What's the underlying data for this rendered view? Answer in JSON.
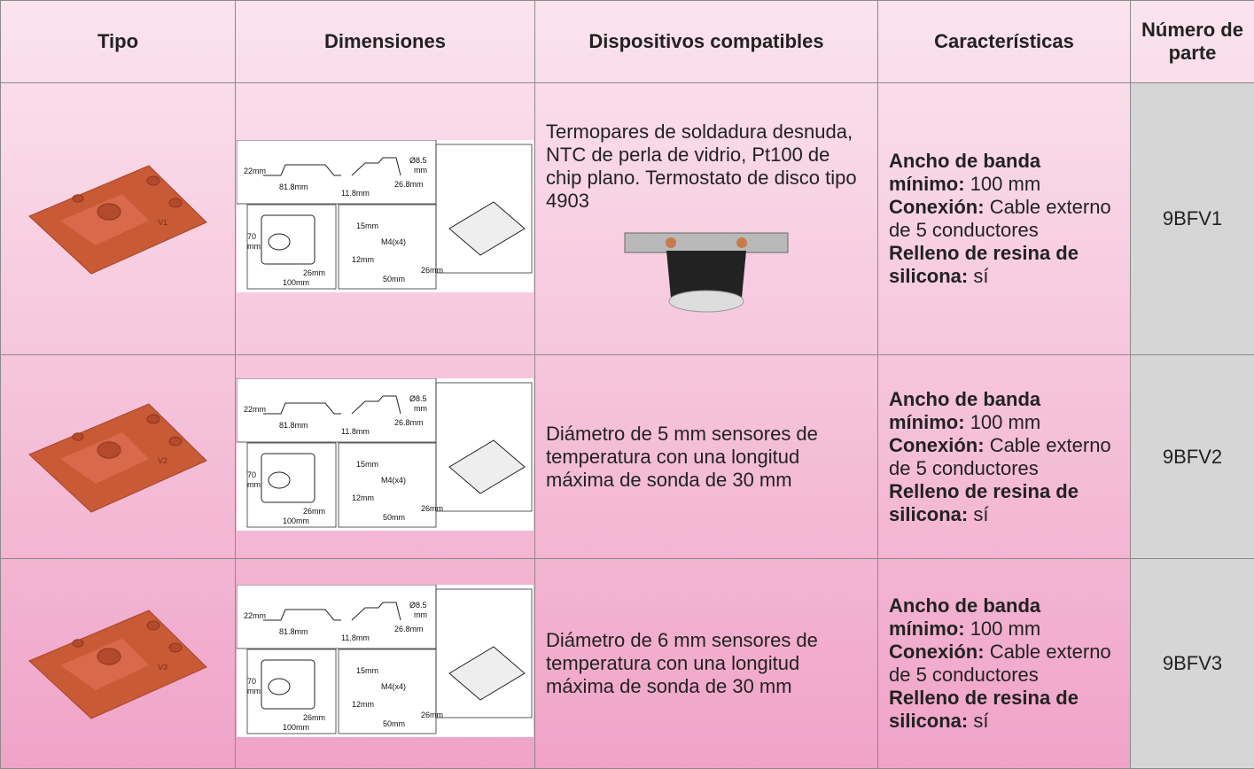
{
  "table": {
    "headers": [
      "Tipo",
      "Dimensiones",
      "Dispositivos compatibles",
      "Características",
      "Número de parte"
    ],
    "dimension_labels": [
      "22mm",
      "81.8mm",
      "Ø8.5",
      "mm",
      "26.8mm",
      "11.8mm",
      "70",
      "mm",
      "26mm",
      "100mm",
      "15mm",
      "M4(x4)",
      "12mm",
      "26mm",
      "50mm"
    ],
    "rows": [
      {
        "devices": "Termopares de soldadura desnuda, NTC de perla de vidrio, Pt100 de chip plano. Termostato de disco tipo 4903",
        "characteristics": [
          {
            "label": "Ancho de banda mínimo:",
            "value": "100 mm"
          },
          {
            "label": "Conexión:",
            "value": "Cable externo de 5 conductores"
          },
          {
            "label": "Relleno de resina de silicona:",
            "value": "sí"
          }
        ],
        "part": "9BFV1",
        "plate": "V1"
      },
      {
        "devices": "Diámetro de 5 mm sensores de temperatura con una longitud máxima de sonda de 30 mm",
        "characteristics": [
          {
            "label": "Ancho de banda mínimo:",
            "value": "100 mm"
          },
          {
            "label": "Conexión:",
            "value": "Cable externo de 5 conductores"
          },
          {
            "label": "Relleno de resina de silicona:",
            "value": "sí"
          }
        ],
        "part": "9BFV2",
        "plate": "V2"
      },
      {
        "devices": "Diámetro de 6 mm sensores de temperatura con una longitud máxima de sonda de 30 mm",
        "characteristics": [
          {
            "label": "Ancho de banda mínimo:",
            "value": "100 mm"
          },
          {
            "label": "Conexión:",
            "value": "Cable externo de 5 conductores"
          },
          {
            "label": "Relleno de resina de silicona:",
            "value": "sí"
          }
        ],
        "part": "9BFV3",
        "plate": "V3"
      }
    ]
  }
}
